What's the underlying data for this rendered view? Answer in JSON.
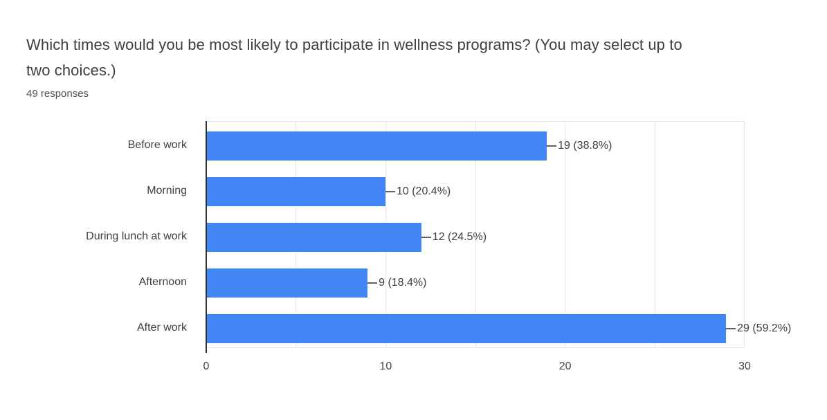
{
  "header": {
    "title_line1": "Which times would you be most likely to participate in wellness programs? (You may select up to",
    "title_line2": "two choices.)",
    "responses": "49 responses"
  },
  "chart_data": {
    "type": "bar",
    "orientation": "horizontal",
    "title": "Which times would you be most likely to participate in wellness programs? (You may select up to two choices.)",
    "subtitle": "49 responses",
    "categories": [
      "Before work",
      "Morning",
      "During lunch at work",
      "Afternoon",
      "After work"
    ],
    "values": [
      19,
      10,
      12,
      9,
      29
    ],
    "value_labels": [
      "19 (38.8%)",
      "10 (20.4%)",
      "12 (24.5%)",
      "9 (18.4%)",
      "29 (59.2%)"
    ],
    "percentages": [
      38.8,
      20.4,
      24.5,
      18.4,
      59.2
    ],
    "xlim": [
      0,
      30
    ],
    "x_ticks": [
      0,
      10,
      20,
      30
    ],
    "gridline_step": 5,
    "grid": true,
    "legend": false,
    "bar_color": "#4285f4",
    "gridline_color": "#e8e8e8",
    "baseline_color": "#333333",
    "xlabel": "",
    "ylabel": ""
  }
}
